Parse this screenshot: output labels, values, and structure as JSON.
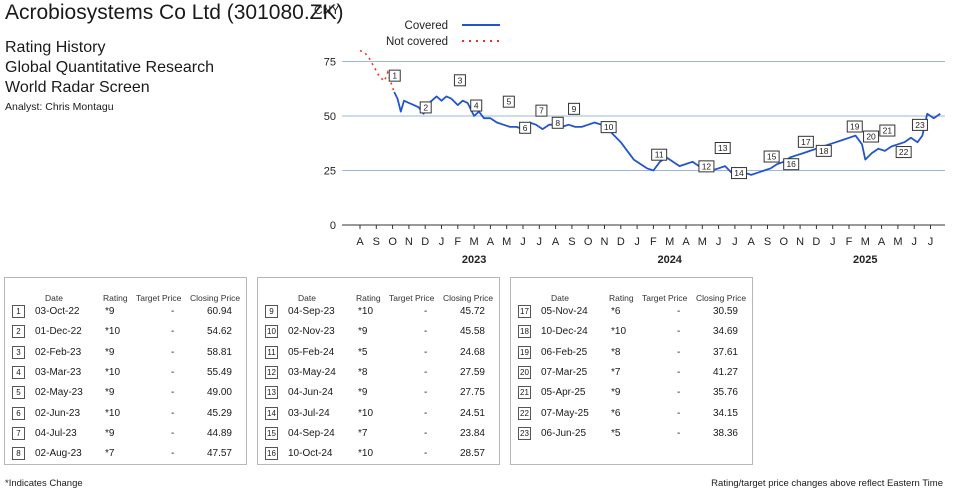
{
  "header": {
    "title": "Acrobiosystems Co Ltd (301080.ZK)",
    "subtitle_lines": [
      "Rating History",
      "Global Quantitative Research",
      "World Radar Screen"
    ],
    "analyst": "Analyst: Chris Montagu"
  },
  "chart_data": {
    "type": "line",
    "y_unit_label": "CNY",
    "ylim": [
      0,
      85
    ],
    "yticks": [
      0,
      25,
      50,
      75
    ],
    "grid": true,
    "legend": {
      "placement": "top",
      "entries": [
        {
          "label": "Covered",
          "style": "solid",
          "color": "#2255cc"
        },
        {
          "label": "Not covered",
          "style": "dotted",
          "color": "#ee3322"
        }
      ]
    },
    "x_month_labels": [
      "A",
      "S",
      "O",
      "N",
      "D",
      "J",
      "F",
      "M",
      "A",
      "M",
      "J",
      "J",
      "A",
      "S",
      "O",
      "N",
      "D",
      "J",
      "F",
      "M",
      "A",
      "M",
      "J",
      "J",
      "A",
      "S",
      "O",
      "N",
      "D",
      "J",
      "F",
      "M",
      "A",
      "M",
      "J",
      "J"
    ],
    "x_year_labels": [
      {
        "label": "2023",
        "month_index": 7
      },
      {
        "label": "2024",
        "month_index": 19
      },
      {
        "label": "2025",
        "month_index": 31
      }
    ],
    "not_covered_series": {
      "name": "Not covered",
      "points": [
        [
          0,
          80
        ],
        [
          0.3,
          79
        ],
        [
          0.6,
          76
        ],
        [
          0.9,
          72
        ],
        [
          1.2,
          68
        ],
        [
          1.5,
          66
        ],
        [
          1.7,
          70
        ],
        [
          2.0,
          63
        ],
        [
          2.1,
          61
        ]
      ]
    },
    "covered_series": {
      "name": "Covered",
      "points": [
        [
          2.1,
          61
        ],
        [
          2.3,
          58
        ],
        [
          2.5,
          52
        ],
        [
          2.7,
          57
        ],
        [
          3.0,
          56
        ],
        [
          3.3,
          55
        ],
        [
          3.6,
          54
        ],
        [
          3.9,
          51
        ],
        [
          4.1,
          55
        ],
        [
          4.4,
          57
        ],
        [
          4.7,
          59
        ],
        [
          5.0,
          57
        ],
        [
          5.3,
          59
        ],
        [
          5.6,
          58
        ],
        [
          6.0,
          55
        ],
        [
          6.3,
          57
        ],
        [
          6.6,
          56
        ],
        [
          7.0,
          50
        ],
        [
          7.3,
          52
        ],
        [
          7.6,
          49
        ],
        [
          8.0,
          49
        ],
        [
          8.4,
          47
        ],
        [
          8.8,
          46
        ],
        [
          9.2,
          45
        ],
        [
          9.6,
          45
        ],
        [
          10.0,
          44
        ],
        [
          10.4,
          47
        ],
        [
          10.8,
          46
        ],
        [
          11.2,
          44
        ],
        [
          11.6,
          46
        ],
        [
          12.0,
          46
        ],
        [
          12.4,
          45
        ],
        [
          12.8,
          46
        ],
        [
          13.2,
          45
        ],
        [
          13.6,
          45
        ],
        [
          14.0,
          46
        ],
        [
          14.4,
          47
        ],
        [
          14.8,
          46
        ],
        [
          15.2,
          44
        ],
        [
          15.6,
          41
        ],
        [
          16.0,
          38
        ],
        [
          16.4,
          34
        ],
        [
          16.8,
          30
        ],
        [
          17.2,
          28
        ],
        [
          17.6,
          26
        ],
        [
          18.0,
          25
        ],
        [
          18.4,
          29
        ],
        [
          18.8,
          31
        ],
        [
          19.2,
          29
        ],
        [
          19.6,
          27
        ],
        [
          20.0,
          28
        ],
        [
          20.4,
          29
        ],
        [
          20.8,
          27
        ],
        [
          21.2,
          27
        ],
        [
          21.6,
          25
        ],
        [
          22.0,
          26
        ],
        [
          22.4,
          27
        ],
        [
          22.8,
          24
        ],
        [
          23.2,
          25
        ],
        [
          23.6,
          24
        ],
        [
          24.0,
          23
        ],
        [
          24.4,
          24
        ],
        [
          24.8,
          25
        ],
        [
          25.2,
          26
        ],
        [
          25.6,
          28
        ],
        [
          26.0,
          29
        ],
        [
          26.4,
          31
        ],
        [
          26.8,
          32
        ],
        [
          27.2,
          33
        ],
        [
          27.6,
          34
        ],
        [
          28.0,
          35
        ],
        [
          28.4,
          36
        ],
        [
          28.8,
          37
        ],
        [
          29.2,
          38
        ],
        [
          29.6,
          39
        ],
        [
          30.0,
          40
        ],
        [
          30.4,
          41
        ],
        [
          30.8,
          37
        ],
        [
          31.0,
          30
        ],
        [
          31.4,
          33
        ],
        [
          31.8,
          35
        ],
        [
          32.2,
          34
        ],
        [
          32.6,
          36
        ],
        [
          33.0,
          37
        ],
        [
          33.4,
          38
        ],
        [
          33.8,
          40
        ],
        [
          34.2,
          38
        ],
        [
          34.5,
          41
        ],
        [
          34.8,
          51
        ],
        [
          35.2,
          49
        ],
        [
          35.4,
          50
        ],
        [
          35.6,
          51
        ]
      ]
    },
    "rating_markers": [
      {
        "n": "1",
        "x": 2.1,
        "y": 60.94
      },
      {
        "n": "2",
        "x": 4.0,
        "y": 54.62
      },
      {
        "n": "3",
        "x": 6.1,
        "y": 58.81
      },
      {
        "n": "4",
        "x": 7.1,
        "y": 55.49
      },
      {
        "n": "5",
        "x": 9.1,
        "y": 49.0
      },
      {
        "n": "6",
        "x": 10.1,
        "y": 45.29
      },
      {
        "n": "7",
        "x": 11.1,
        "y": 44.89
      },
      {
        "n": "8",
        "x": 12.1,
        "y": 47.57
      },
      {
        "n": "9",
        "x": 13.1,
        "y": 45.72
      },
      {
        "n": "10",
        "x": 15.1,
        "y": 45.58
      },
      {
        "n": "11",
        "x": 18.2,
        "y": 24.68
      },
      {
        "n": "12",
        "x": 21.1,
        "y": 27.59
      },
      {
        "n": "13",
        "x": 22.1,
        "y": 27.75
      },
      {
        "n": "14",
        "x": 23.1,
        "y": 24.51
      },
      {
        "n": "15",
        "x": 25.1,
        "y": 23.84
      },
      {
        "n": "16",
        "x": 26.3,
        "y": 28.57
      },
      {
        "n": "17",
        "x": 27.2,
        "y": 30.59
      },
      {
        "n": "18",
        "x": 28.3,
        "y": 34.69
      },
      {
        "n": "19",
        "x": 30.2,
        "y": 37.61
      },
      {
        "n": "20",
        "x": 31.2,
        "y": 41.27
      },
      {
        "n": "21",
        "x": 32.2,
        "y": 35.76
      },
      {
        "n": "22",
        "x": 33.2,
        "y": 34.15
      },
      {
        "n": "23",
        "x": 34.2,
        "y": 38.36
      }
    ]
  },
  "table_headers": {
    "date": "Date",
    "rating": "Rating",
    "target": "Target Price",
    "close": "Closing Price"
  },
  "rating_tables": [
    [
      {
        "n": "1",
        "date": "03-Oct-22",
        "rating": "*9",
        "target": "-",
        "close": "60.94"
      },
      {
        "n": "2",
        "date": "01-Dec-22",
        "rating": "*10",
        "target": "-",
        "close": "54.62"
      },
      {
        "n": "3",
        "date": "02-Feb-23",
        "rating": "*9",
        "target": "-",
        "close": "58.81"
      },
      {
        "n": "4",
        "date": "03-Mar-23",
        "rating": "*10",
        "target": "-",
        "close": "55.49"
      },
      {
        "n": "5",
        "date": "02-May-23",
        "rating": "*9",
        "target": "-",
        "close": "49.00"
      },
      {
        "n": "6",
        "date": "02-Jun-23",
        "rating": "*10",
        "target": "-",
        "close": "45.29"
      },
      {
        "n": "7",
        "date": "04-Jul-23",
        "rating": "*9",
        "target": "-",
        "close": "44.89"
      },
      {
        "n": "8",
        "date": "02-Aug-23",
        "rating": "*7",
        "target": "-",
        "close": "47.57"
      }
    ],
    [
      {
        "n": "9",
        "date": "04-Sep-23",
        "rating": "*10",
        "target": "-",
        "close": "45.72"
      },
      {
        "n": "10",
        "date": "02-Nov-23",
        "rating": "*9",
        "target": "-",
        "close": "45.58"
      },
      {
        "n": "11",
        "date": "05-Feb-24",
        "rating": "*5",
        "target": "-",
        "close": "24.68"
      },
      {
        "n": "12",
        "date": "03-May-24",
        "rating": "*8",
        "target": "-",
        "close": "27.59"
      },
      {
        "n": "13",
        "date": "04-Jun-24",
        "rating": "*9",
        "target": "-",
        "close": "27.75"
      },
      {
        "n": "14",
        "date": "03-Jul-24",
        "rating": "*10",
        "target": "-",
        "close": "24.51"
      },
      {
        "n": "15",
        "date": "04-Sep-24",
        "rating": "*7",
        "target": "-",
        "close": "23.84"
      },
      {
        "n": "16",
        "date": "10-Oct-24",
        "rating": "*10",
        "target": "-",
        "close": "28.57"
      }
    ],
    [
      {
        "n": "17",
        "date": "05-Nov-24",
        "rating": "*6",
        "target": "-",
        "close": "30.59"
      },
      {
        "n": "18",
        "date": "10-Dec-24",
        "rating": "*10",
        "target": "-",
        "close": "34.69"
      },
      {
        "n": "19",
        "date": "06-Feb-25",
        "rating": "*8",
        "target": "-",
        "close": "37.61"
      },
      {
        "n": "20",
        "date": "07-Mar-25",
        "rating": "*7",
        "target": "-",
        "close": "41.27"
      },
      {
        "n": "21",
        "date": "05-Apr-25",
        "rating": "*9",
        "target": "-",
        "close": "35.76"
      },
      {
        "n": "22",
        "date": "07-May-25",
        "rating": "*6",
        "target": "-",
        "close": "34.15"
      },
      {
        "n": "23",
        "date": "06-Jun-25",
        "rating": "*5",
        "target": "-",
        "close": "38.36"
      }
    ]
  ],
  "footer": {
    "left": "*Indicates Change",
    "right": "Rating/target price changes above reflect Eastern Time"
  }
}
